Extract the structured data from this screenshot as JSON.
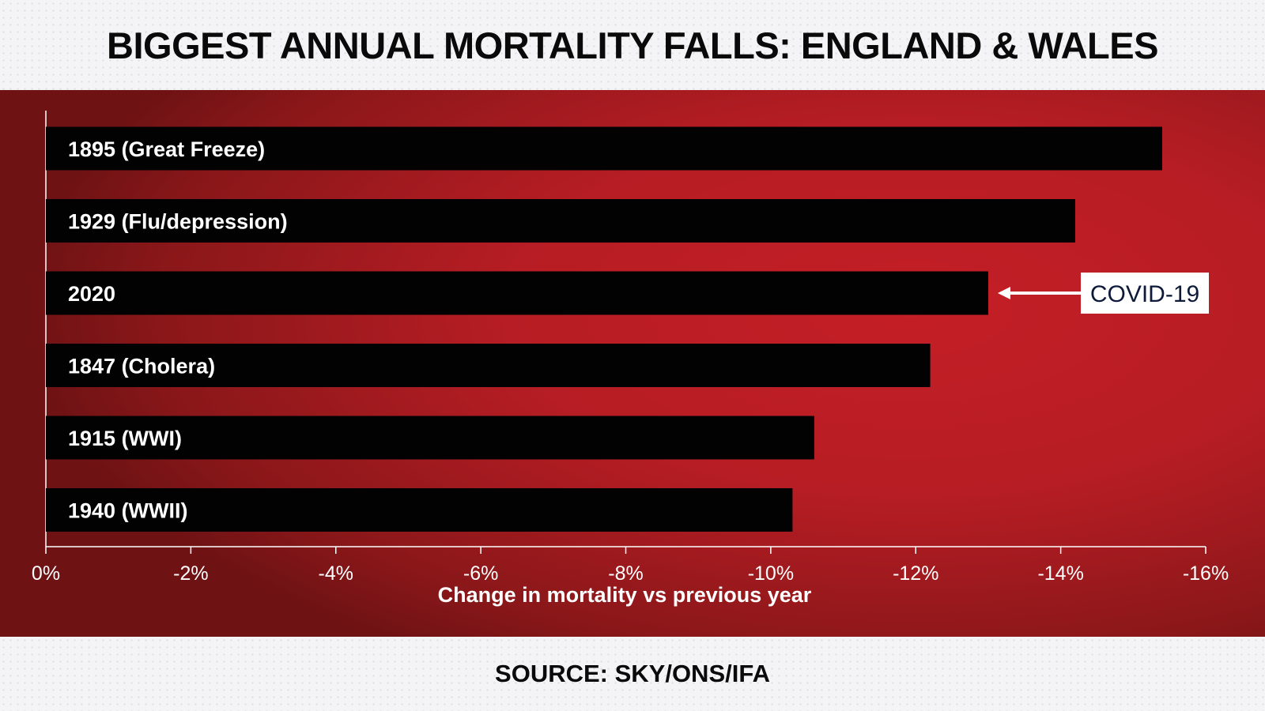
{
  "title": "BIGGEST ANNUAL MORTALITY FALLS: ENGLAND & WALES",
  "source": "SOURCE: SKY/ONS/IFA",
  "colors": {
    "panel": "#c41e26",
    "bar": "#020203",
    "text": "#ffffff",
    "annotation_text": "#0d1a3a"
  },
  "chart_data": {
    "type": "bar",
    "orientation": "horizontal",
    "title": "BIGGEST ANNUAL MORTALITY FALLS: ENGLAND & WALES",
    "categories": [
      "1895 (Great Freeze)",
      "1929 (Flu/depression)",
      "2020",
      "1847 (Cholera)",
      "1915 (WWI)",
      "1940 (WWII)"
    ],
    "values": [
      -15.4,
      -14.2,
      -13.0,
      -12.2,
      -10.6,
      -10.3
    ],
    "xlabel": "Change in mortality vs previous year",
    "ylabel": "",
    "xlim": [
      0,
      -16
    ],
    "xticks": [
      0,
      -2,
      -4,
      -6,
      -8,
      -10,
      -12,
      -14,
      -16
    ],
    "xtick_labels": [
      "0%",
      "-2%",
      "-4%",
      "-6%",
      "-8%",
      "-10%",
      "-12%",
      "-14%",
      "-16%"
    ],
    "grid": false,
    "annotation": {
      "text": "COVID-19",
      "category": "2020"
    }
  }
}
